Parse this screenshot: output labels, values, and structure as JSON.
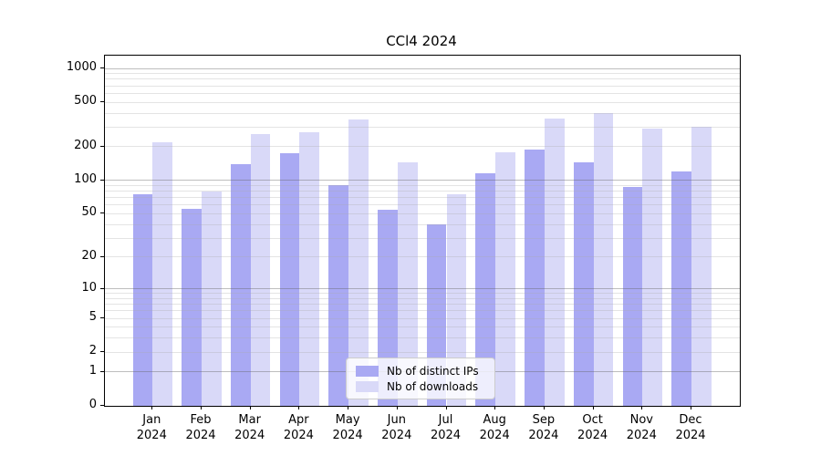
{
  "chart_data": {
    "type": "bar",
    "title": "CCl4 2024",
    "categories": [
      "Jan 2024",
      "Feb 2024",
      "Mar 2024",
      "Apr 2024",
      "May 2024",
      "Jun 2024",
      "Jul 2024",
      "Aug 2024",
      "Sep 2024",
      "Oct 2024",
      "Nov 2024",
      "Dec 2024"
    ],
    "series": [
      {
        "name": "Nb of distinct IPs",
        "color": "#a9a9f3",
        "values": [
          75,
          56,
          140,
          175,
          90,
          54,
          40,
          115,
          190,
          145,
          88,
          120
        ]
      },
      {
        "name": "Nb of downloads",
        "color": "#d9d9f8",
        "values": [
          220,
          80,
          260,
          270,
          350,
          145,
          75,
          180,
          355,
          400,
          290,
          300
        ]
      }
    ],
    "xlabel": "",
    "ylabel": "",
    "yscale": "log1p",
    "yticks": [
      0,
      1,
      2,
      5,
      10,
      20,
      50,
      100,
      200,
      500,
      1000
    ],
    "ylim": [
      0,
      1300
    ],
    "grid": "both-horizontal",
    "legend_position": "bottom-center",
    "grid_major_at": [
      1,
      10,
      100,
      1000
    ],
    "colors": {
      "major_grid": "#bebebe",
      "minor_grid": "#e5e5e5",
      "axis": "#000000",
      "background": "#ffffff"
    }
  }
}
